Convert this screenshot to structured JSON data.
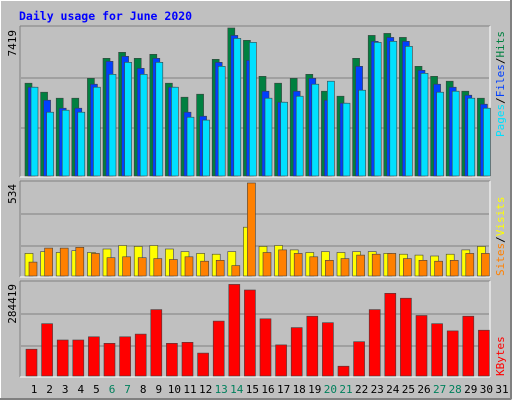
{
  "title": "Daily usage for June 2020",
  "colors": {
    "background": "#c0c0c0",
    "title": "#0000ff",
    "hits": "#008040",
    "files": "#0040ff",
    "pages": "#00e0ff",
    "visits": "#ffff00",
    "sites": "#ff8000",
    "kbytes": "#ff0000",
    "weekend_label": "#00805c",
    "weekday_label": "#000000"
  },
  "legend": {
    "top": [
      "Pages",
      "Files",
      "Hits"
    ],
    "middle": [
      "Sites",
      "Visits"
    ],
    "bottom": [
      "KBytes"
    ],
    "separator": "/"
  },
  "chart_data": {
    "type": "bar",
    "title": "Daily usage for June 2020",
    "categories": [
      "1",
      "2",
      "3",
      "4",
      "5",
      "6",
      "7",
      "8",
      "9",
      "10",
      "11",
      "12",
      "13",
      "14",
      "15",
      "16",
      "17",
      "18",
      "19",
      "20",
      "21",
      "22",
      "23",
      "24",
      "25",
      "26",
      "27",
      "28",
      "29",
      "30",
      "31"
    ],
    "weekend_days": [
      6,
      7,
      13,
      14,
      20,
      21,
      27,
      28
    ],
    "axis_max_labels": {
      "hits_panel": "7419",
      "visits_panel": "534",
      "kbytes_panel": "284419"
    },
    "panels": [
      {
        "name": "hits-files-pages",
        "ymax": 7419,
        "series": [
          {
            "name": "Hits",
            "values": [
              4650,
              4200,
              3900,
              3900,
              4900,
              5900,
              6200,
              5900,
              6100,
              4650,
              3950,
              4100,
              5850,
              7419,
              6800,
              5000,
              4650,
              4900,
              5100,
              4250,
              4000,
              5900,
              7050,
              7150,
              6950,
              5500,
              5000,
              4750,
              4250,
              3900,
              0
            ]
          },
          {
            "name": "Files",
            "values": [
              4450,
              3800,
              3400,
              3400,
              4600,
              5750,
              6000,
              5400,
              5900,
              4450,
              3200,
              3000,
              5700,
              7050,
              5800,
              4250,
              3700,
              4250,
              4900,
              3800,
              3650,
              5500,
              6750,
              6950,
              6750,
              5300,
              4600,
              4450,
              4050,
              3600,
              0
            ]
          },
          {
            "name": "Pages",
            "values": [
              4450,
              3200,
              3300,
              3200,
              4450,
              5100,
              5700,
              5100,
              5700,
              4450,
              2950,
              2800,
              5500,
              6900,
              6700,
              3900,
              3700,
              4000,
              4600,
              4750,
              3650,
              4300,
              6700,
              6750,
              6500,
              5150,
              4200,
              4250,
              3900,
              3400,
              0
            ]
          }
        ]
      },
      {
        "name": "sites-visits",
        "ymax": 534,
        "series": [
          {
            "name": "Visits",
            "values": [
              130,
              140,
              135,
              145,
              135,
              155,
              175,
              170,
              175,
              155,
              140,
              130,
              125,
              140,
              280,
              170,
              175,
              150,
              135,
              140,
              135,
              140,
              140,
              130,
              125,
              120,
              115,
              125,
              150,
              170,
              0
            ]
          },
          {
            "name": "Sites",
            "values": [
              80,
              160,
              160,
              165,
              130,
              105,
              110,
              105,
              100,
              95,
              110,
              85,
              90,
              60,
              534,
              135,
              150,
              130,
              110,
              90,
              100,
              120,
              125,
              130,
              100,
              90,
              85,
              90,
              130,
              130,
              0
            ]
          }
        ]
      },
      {
        "name": "kbytes",
        "ymax": 284419,
        "series": [
          {
            "name": "KBytes",
            "values": [
              82000,
              160000,
              110000,
              110000,
              120000,
              100000,
              120000,
              128000,
              203000,
              100000,
              103000,
              70000,
              168000,
              280000,
              263000,
              175000,
              95000,
              148000,
              183000,
              163000,
              30000,
              105000,
              203000,
              253000,
              238000,
              185000,
              160000,
              138000,
              183000,
              140000,
              0
            ]
          }
        ]
      }
    ]
  }
}
